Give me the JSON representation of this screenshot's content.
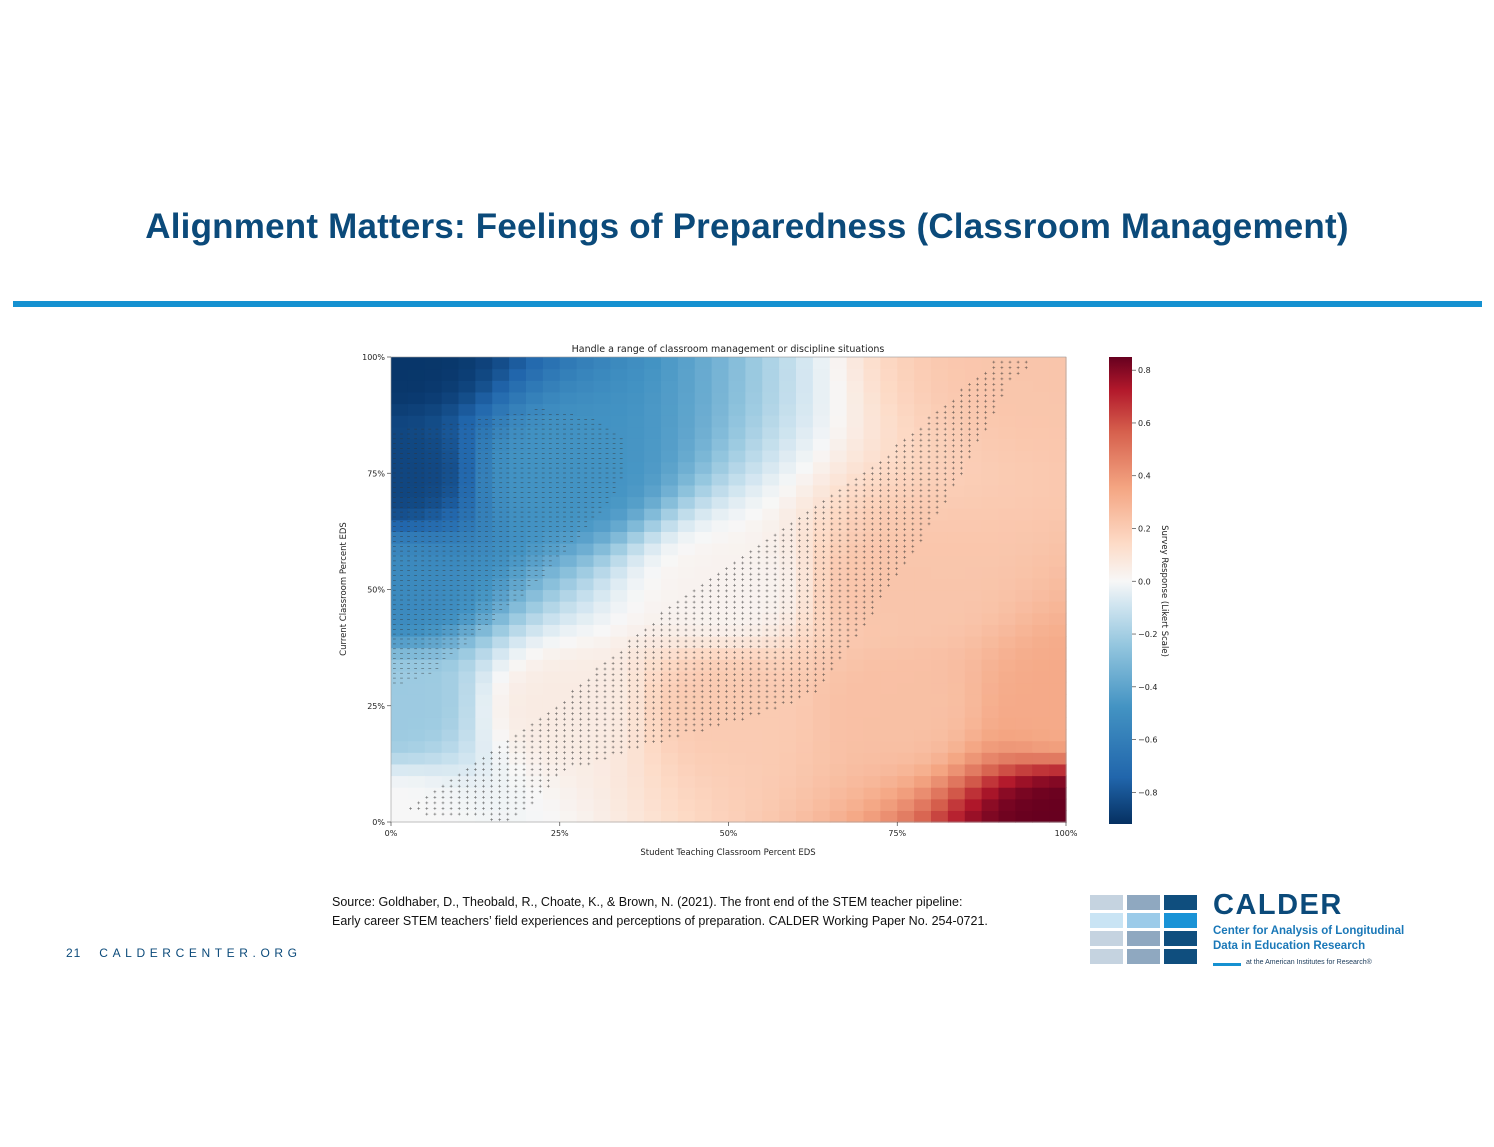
{
  "slide": {
    "title": "Alignment Matters: Feelings of Preparedness (Classroom Management)",
    "source": "Source: Goldhaber, D., Theobald, R., Choate, K., & Brown, N. (2021). The front end of the STEM teacher pipeline: Early career STEM teachers’ field experiences and perceptions of preparation. CALDER Working Paper No. 254-0721.",
    "page_number": "21",
    "footer_site": "CALDERCENTER.ORG"
  },
  "logo": {
    "name": "CALDER",
    "line1": "Center for Analysis of Longitudinal",
    "line2": "Data in Education Research",
    "tagline": "at the American Institutes for Research®",
    "grid_colors": [
      [
        "#c5d3e0",
        "#8fa8c0",
        "#0f4e7e"
      ],
      [
        "#c9e4f4",
        "#9bcbe9",
        "#1a93d6"
      ],
      [
        "#c5d3e0",
        "#8fa8c0",
        "#0f4e7e"
      ],
      [
        "#c5d3e0",
        "#8fa8c0",
        "#0f4e7e"
      ]
    ]
  },
  "chart_data": {
    "type": "heatmap",
    "title": "Handle a range of classroom management or discipline situations",
    "xlabel": "Student Teaching Classroom Percent EDS",
    "ylabel": "Current Classroom Percent EDS",
    "xlim": [
      0,
      100
    ],
    "ylim": [
      0,
      100
    ],
    "x_ticks": [
      "0%",
      "25%",
      "50%",
      "75%",
      "100%"
    ],
    "y_ticks": [
      "0%",
      "25%",
      "50%",
      "75%",
      "100%"
    ],
    "colorbar": {
      "label": "Survey Response (Likert Scale)",
      "range": [
        -0.92,
        0.85
      ],
      "ticks": [
        "0.8",
        "0.6",
        "0.4",
        "0.2",
        "0.0",
        "−0.2",
        "−0.4",
        "−0.6",
        "−0.8"
      ],
      "tick_values": [
        0.8,
        0.6,
        0.4,
        0.2,
        0.0,
        -0.2,
        -0.4,
        -0.6,
        -0.8
      ],
      "colormap": "RdBu_r"
    },
    "surface_samples": [
      {
        "x": 0,
        "y": 100,
        "value": -0.9
      },
      {
        "x": 0,
        "y": 75,
        "value": -0.85
      },
      {
        "x": 0,
        "y": 50,
        "value": -0.55
      },
      {
        "x": 0,
        "y": 25,
        "value": -0.25
      },
      {
        "x": 0,
        "y": 0,
        "value": 0.0
      },
      {
        "x": 25,
        "y": 75,
        "value": -0.5
      },
      {
        "x": 25,
        "y": 25,
        "value": 0.05
      },
      {
        "x": 50,
        "y": 50,
        "value": 0.02
      },
      {
        "x": 50,
        "y": 25,
        "value": 0.18
      },
      {
        "x": 75,
        "y": 50,
        "value": 0.2
      },
      {
        "x": 75,
        "y": 25,
        "value": 0.22
      },
      {
        "x": 100,
        "y": 100,
        "value": 0.2
      },
      {
        "x": 100,
        "y": 25,
        "value": 0.3
      },
      {
        "x": 100,
        "y": 0,
        "value": 0.85
      }
    ],
    "significance_regions": [
      {
        "marker": "-",
        "polygon": [
          [
            0,
            29
          ],
          [
            6,
            32
          ],
          [
            14,
            42
          ],
          [
            22,
            52
          ],
          [
            27,
            60
          ],
          [
            32,
            68
          ],
          [
            35,
            76
          ],
          [
            35,
            82
          ],
          [
            30,
            87
          ],
          [
            22,
            89
          ],
          [
            10,
            86
          ],
          [
            0,
            84
          ]
        ]
      },
      {
        "marker": "+",
        "polygon": [
          [
            2,
            2
          ],
          [
            18,
            0
          ],
          [
            26,
            11
          ],
          [
            42,
            18
          ],
          [
            55,
            23
          ],
          [
            63,
            28
          ],
          [
            70,
            42
          ],
          [
            82,
            68
          ],
          [
            92,
            95
          ],
          [
            96,
            100
          ],
          [
            90,
            100
          ],
          [
            82,
            90
          ],
          [
            70,
            75
          ],
          [
            55,
            60
          ],
          [
            40,
            45
          ],
          [
            25,
            26
          ],
          [
            12,
            12
          ]
        ]
      }
    ]
  }
}
